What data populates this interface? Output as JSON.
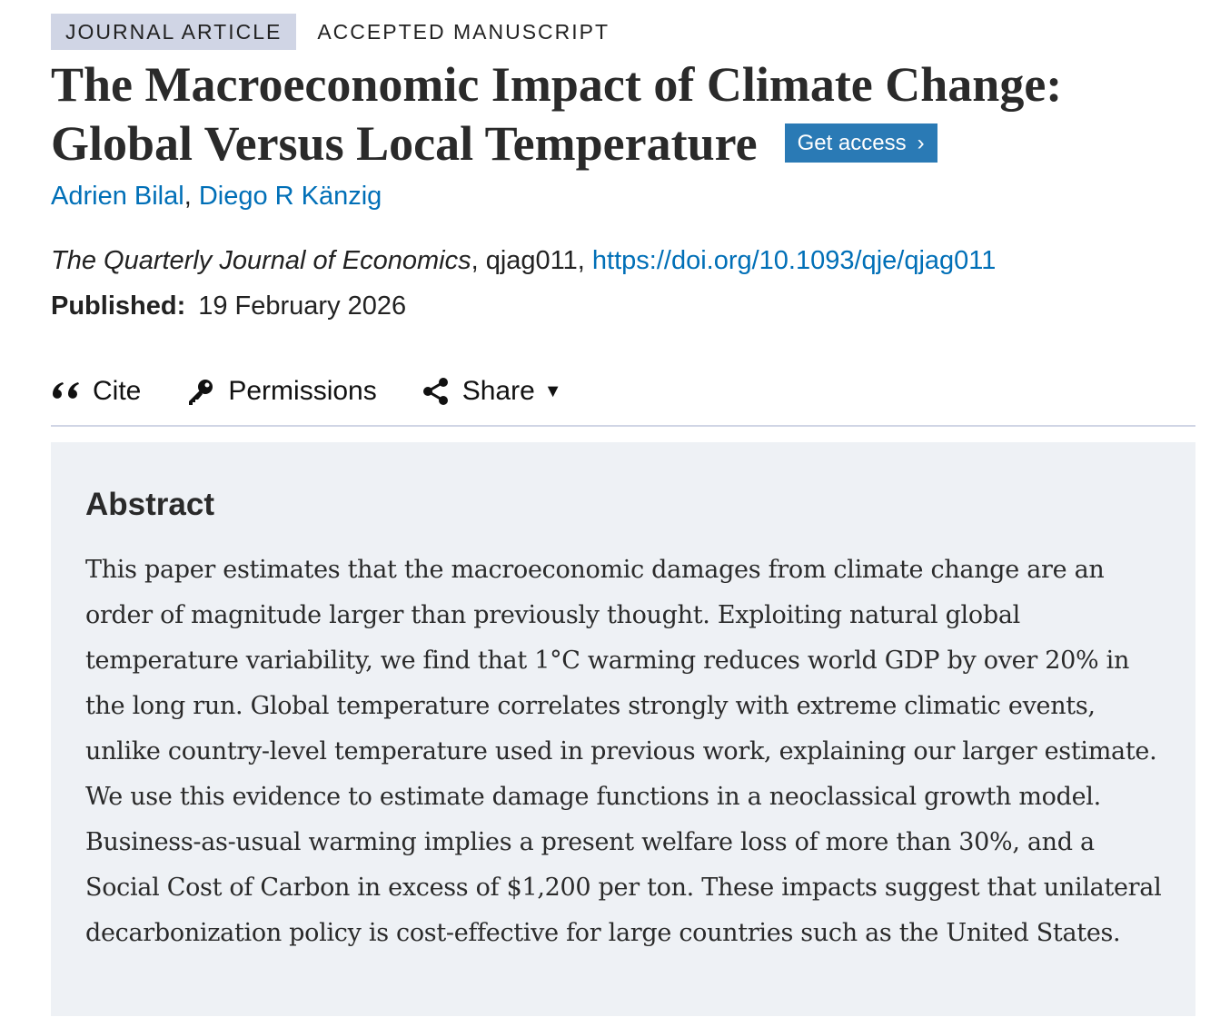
{
  "badges": {
    "type": "JOURNAL ARTICLE",
    "status": "ACCEPTED MANUSCRIPT"
  },
  "title": "The Macroeconomic Impact of Climate Change: Global Versus Local Temperature",
  "get_access": {
    "label": "Get access",
    "icon": "chevron-right-icon"
  },
  "authors": [
    "Adrien Bilal",
    "Diego R Känzig"
  ],
  "author_separator": ", ",
  "journal": {
    "name": "The Quarterly Journal of Economics",
    "id": "qjag011",
    "doi": "https://doi.org/10.1093/qje/qjag011"
  },
  "published": {
    "label": "Published:",
    "date": "19 February 2026"
  },
  "actions": {
    "cite": "Cite",
    "permissions": "Permissions",
    "share": "Share"
  },
  "abstract": {
    "heading": "Abstract",
    "text": "This paper estimates that the macroeconomic damages from climate change are an order of magnitude larger than previously thought. Exploiting natural global temperature variability, we find that 1°C warming reduces world GDP by over 20% in the long run. Global temperature correlates strongly with extreme climatic events, unlike country-level temperature used in previous work, explaining our larger estimate. We use this evidence to estimate damage functions in a neoclassical growth model. Business-as-usual warming implies a present welfare loss of more than 30%, and a Social Cost of Carbon in excess of $1,200 per ton. These impacts suggest that unilateral decarbonization policy is cost-effective for large countries such as the United States."
  },
  "colors": {
    "link": "#006fb7",
    "button": "#2a7ab5",
    "badge_bg": "#d0d5e5",
    "abstract_bg": "#eef1f5"
  }
}
